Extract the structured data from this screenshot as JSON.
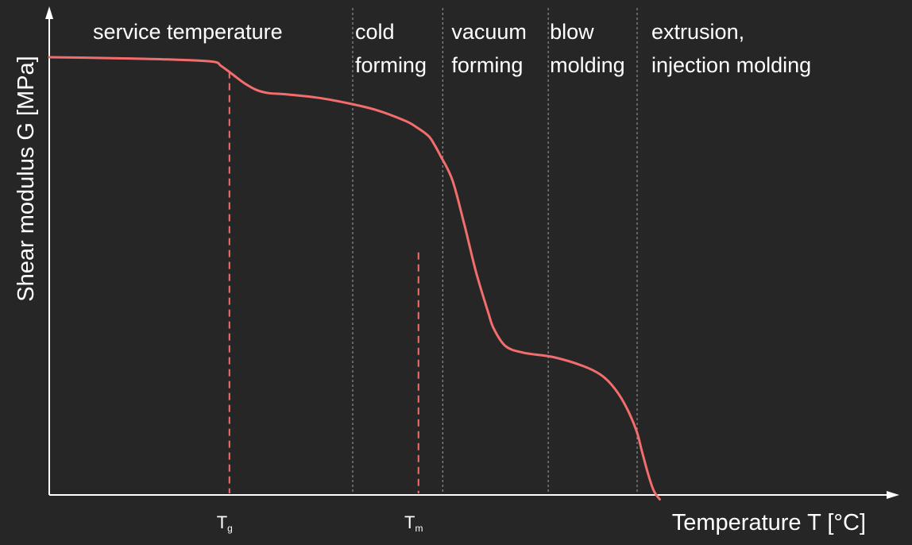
{
  "chart_data": {
    "type": "line",
    "title": "",
    "xlabel": "Temperature T [°C]",
    "ylabel": "Shear modulus G [MPa]",
    "xlim": [
      0,
      100
    ],
    "ylim": [
      0,
      100
    ],
    "grid": false,
    "legend": "none",
    "series": [
      {
        "color": "#f26d6d",
        "x": [
          0,
          10,
          20,
          27.5,
          29,
          31,
          33,
          35,
          37,
          40,
          45,
          50,
          55,
          60,
          62,
          64,
          65,
          66,
          68,
          70,
          72,
          74,
          75,
          77,
          80,
          85,
          90,
          93,
          95,
          97,
          99,
          100,
          101,
          102,
          103
        ],
        "y": [
          100,
          99.8,
          99.5,
          99,
          98,
          96,
          94,
          92.5,
          91.8,
          91.5,
          90.8,
          89.6,
          88,
          85.5,
          84,
          82,
          80,
          77.5,
          72,
          62,
          51,
          42,
          38,
          34,
          32.5,
          31.5,
          29.5,
          27.5,
          25,
          21,
          15,
          10,
          5,
          1,
          -1
        ]
      }
    ],
    "regions": [
      {
        "label_lines": [
          "service temperature"
        ]
      },
      {
        "label_lines": [
          "cold",
          "forming"
        ]
      },
      {
        "label_lines": [
          "vacuum",
          "forming"
        ]
      },
      {
        "label_lines": [
          "blow",
          "molding"
        ]
      },
      {
        "label_lines": [
          "extrusion,",
          "injection molding"
        ]
      }
    ],
    "region_bounds": [
      51.2,
      66.4,
      84.2,
      99.2
    ],
    "markers": [
      {
        "main": "T",
        "sub": "g",
        "x": 30.4,
        "y": 96.8
      },
      {
        "main": "T",
        "sub": "m",
        "x": 62.3,
        "y": 55.4
      }
    ]
  }
}
